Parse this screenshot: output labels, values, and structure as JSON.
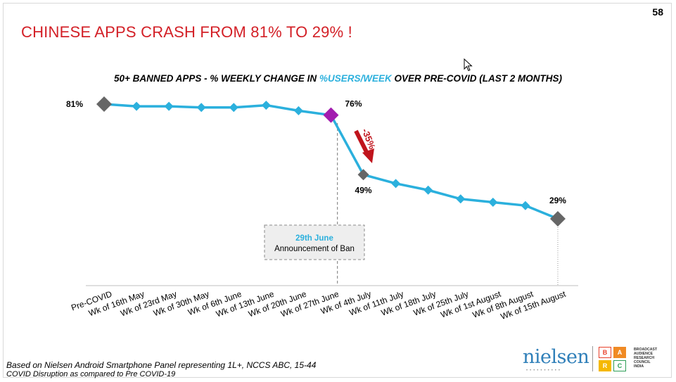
{
  "page_number": "58",
  "headline": "CHINESE APPS CRASH FROM 81% TO 29% !",
  "chart_title": {
    "before": "50+ BANNED APPS - % WEEKLY CHANGE IN ",
    "highlight": "%USERS/WEEK",
    "after": " OVER PRE-COVID (LAST 2 MONTHS)"
  },
  "chart_data": {
    "type": "line",
    "title": "50+ BANNED APPS - % WEEKLY CHANGE IN %USERS/WEEK OVER PRE-COVID (LAST 2 MONTHS)",
    "categories": [
      "Pre-COVID",
      "Wk of 16th May",
      "Wk of 23rd May",
      "Wk of 30th May",
      "Wk of 6th June",
      "Wk of 13th June",
      "Wk of 20th June",
      "Wk of 27th June",
      "Wk of 4th July",
      "Wk of 11th July",
      "Wk of 18th July",
      "Wk of 25th July",
      "Wk of 1st August",
      "Wk of 8th August",
      "Wk of 15th August"
    ],
    "series": [
      {
        "values": [
          81,
          80,
          80,
          79.5,
          79.5,
          80.5,
          78,
          76,
          49,
          45,
          42,
          38,
          36.5,
          35,
          29
        ]
      }
    ],
    "data_labels": [
      {
        "index": 0,
        "text": "81%"
      },
      {
        "index": 7,
        "text": "76%"
      },
      {
        "index": 8,
        "text": "49%"
      },
      {
        "index": 14,
        "text": "29%"
      }
    ],
    "annotations": [
      {
        "text": "-35%",
        "from_index": 7,
        "to_index": 8
      },
      {
        "title": "29th June",
        "text": "Announcement of Ban",
        "at_index": 7.2
      }
    ],
    "ylim": [
      0,
      81
    ],
    "grid": false,
    "legend": "none"
  },
  "colors": {
    "line": "#2bb0dd",
    "marker_default": "#2bb0dd",
    "marker_anchor": "#666666",
    "marker_ban": "#a21caf",
    "headline": "#d32027",
    "arrow": "#c0141c",
    "ban_title": "#2bb0dd"
  },
  "footnotes": [
    "Based on Nielsen Android Smartphone Panel representing 1L+, NCCS ABC, 15-44",
    "COVID Disruption  as compared to Pre COVID-19"
  ],
  "logos": {
    "nielsen": "nielsen",
    "barc_letters": [
      "B",
      "A",
      "R",
      "C"
    ],
    "barc_colors": [
      "#e8412b",
      "#f08a24",
      "#f5b800",
      "#2e9e57"
    ],
    "barc_text": [
      "BROADCAST",
      "AUDIENCE",
      "RESEARCH",
      "COUNCIL",
      "INDIA"
    ]
  },
  "cursor_icon": "mouse-pointer-icon"
}
